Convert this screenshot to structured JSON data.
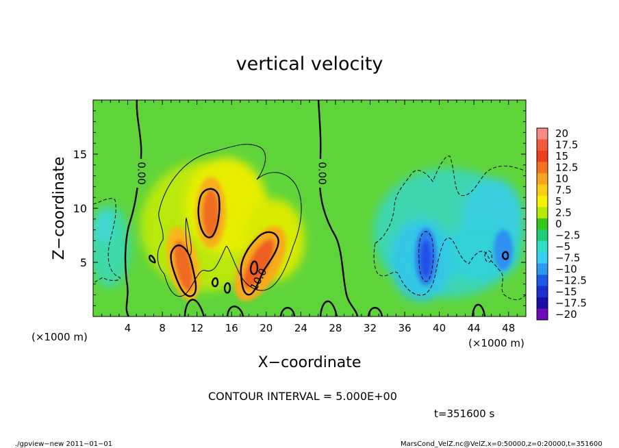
{
  "chart_data": {
    "type": "heatmap",
    "title": "vertical velocity",
    "xlabel": "X−coordinate",
    "ylabel": "Z−coordinate",
    "x_unit_left": "(×1000 m)",
    "x_unit_right": "(×1000 m)",
    "xlim": [
      0,
      50
    ],
    "ylim": [
      0,
      20
    ],
    "x_ticks": [
      4,
      8,
      12,
      16,
      20,
      24,
      28,
      32,
      36,
      40,
      44,
      48
    ],
    "y_ticks": [
      5,
      10,
      15
    ],
    "colorbar": {
      "levels": [
        "20",
        "17.5",
        "15",
        "12.5",
        "10",
        "7.5",
        "5",
        "2.5",
        "0",
        "−2.5",
        "−5",
        "−7.5",
        "−10",
        "−12.5",
        "−15",
        "−17.5",
        "−20"
      ],
      "colors": [
        "#f58a86",
        "#f25a3a",
        "#ef3f1e",
        "#f2731b",
        "#f7a51c",
        "#f9cf16",
        "#f4f200",
        "#b6ea06",
        "#32c81a",
        "#1dcc7a",
        "#2ee0c8",
        "#38d0f2",
        "#2f98f0",
        "#1d5ae8",
        "#1a2fd0",
        "#1a0ea8",
        "#6c0ab8"
      ]
    },
    "contour_labels": [
      "0.00",
      "0.00",
      "10.0"
    ],
    "features": [
      {
        "kind": "updraft",
        "x": 10.5,
        "z": 5.0,
        "peak": 12.5
      },
      {
        "kind": "updraft",
        "x": 13.3,
        "z": 10.0,
        "peak": 12.5
      },
      {
        "kind": "updraft",
        "x": 18.8,
        "z": 5.5,
        "peak": 13.0
      },
      {
        "kind": "downdraft",
        "x": 38.3,
        "z": 5.8,
        "peak": -9.5
      },
      {
        "kind": "downdraft",
        "x": 47.0,
        "z": 7.5,
        "peak": -7.0
      }
    ],
    "grid": false
  },
  "annotations": {
    "contour_interval": "CONTOUR INTERVAL = 5.000E+00",
    "time": "t=351600 s",
    "footer_left": "./gpview−new   2011−01−01",
    "footer_right": "MarsCond_VelZ.nc@VelZ,x=0:50000,z=0:20000,t=351600"
  }
}
